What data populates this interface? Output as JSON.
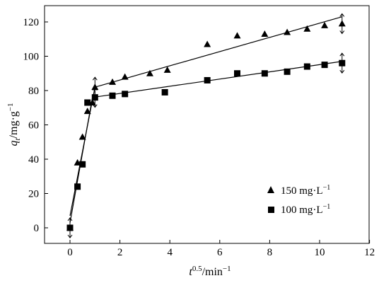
{
  "chart_data": {
    "type": "scatter",
    "xlabel": {
      "main": "t",
      "sup": "0.5",
      "rest": "/min",
      "rest_sup": "−1"
    },
    "ylabel": {
      "main": "q",
      "sub": "t",
      "rest": "/mg·g",
      "rest_sup": "−1"
    },
    "xlim": [
      -1,
      12
    ],
    "ylim": [
      -10,
      130
    ],
    "x_ticks": [
      0,
      2,
      4,
      6,
      8,
      10,
      12
    ],
    "x_tick_labels": [
      "0",
      "2",
      "4",
      "6",
      "8",
      "10",
      "12"
    ],
    "y_ticks": [
      0,
      20,
      40,
      60,
      80,
      100,
      120
    ],
    "y_tick_labels": [
      "0",
      "20",
      "40",
      "60",
      "80",
      "100",
      "120"
    ],
    "grid": false,
    "legend_position": "lower-right",
    "series": [
      {
        "name": "150 mg·L",
        "name_sup": "−1",
        "marker": "triangle",
        "x": [
          0,
          0.3,
          0.5,
          0.7,
          0.9,
          1.0,
          1.7,
          2.2,
          3.2,
          3.9,
          5.5,
          6.7,
          7.8,
          8.7,
          9.5,
          10.2,
          10.9
        ],
        "y": [
          0,
          38,
          53,
          68,
          73,
          82,
          85,
          88,
          90,
          92,
          107,
          112,
          113,
          114,
          116,
          118,
          119
        ],
        "fit_segments": [
          {
            "x": [
              0,
              1.0
            ],
            "y": [
              7,
              82
            ]
          },
          {
            "x": [
              1.0,
              10.9
            ],
            "y": [
              82,
              123
            ]
          }
        ],
        "error_bars_at": [
          0,
          1.0,
          10.9
        ]
      },
      {
        "name": "100 mg·L",
        "name_sup": "−1",
        "marker": "square",
        "x": [
          0,
          0.3,
          0.5,
          0.7,
          1.0,
          1.7,
          2.2,
          3.8,
          5.5,
          6.7,
          7.8,
          8.7,
          9.5,
          10.2,
          10.9
        ],
        "y": [
          0,
          24,
          37,
          73,
          76,
          77,
          78,
          79,
          86,
          90,
          90,
          91,
          94,
          95,
          96
        ],
        "fit_segments": [
          {
            "x": [
              0,
              0.9
            ],
            "y": [
              3,
              76
            ]
          },
          {
            "x": [
              0.9,
              10.9
            ],
            "y": [
              76,
              97
            ]
          }
        ],
        "error_bars_at": [
          1.0,
          10.9
        ]
      }
    ]
  }
}
